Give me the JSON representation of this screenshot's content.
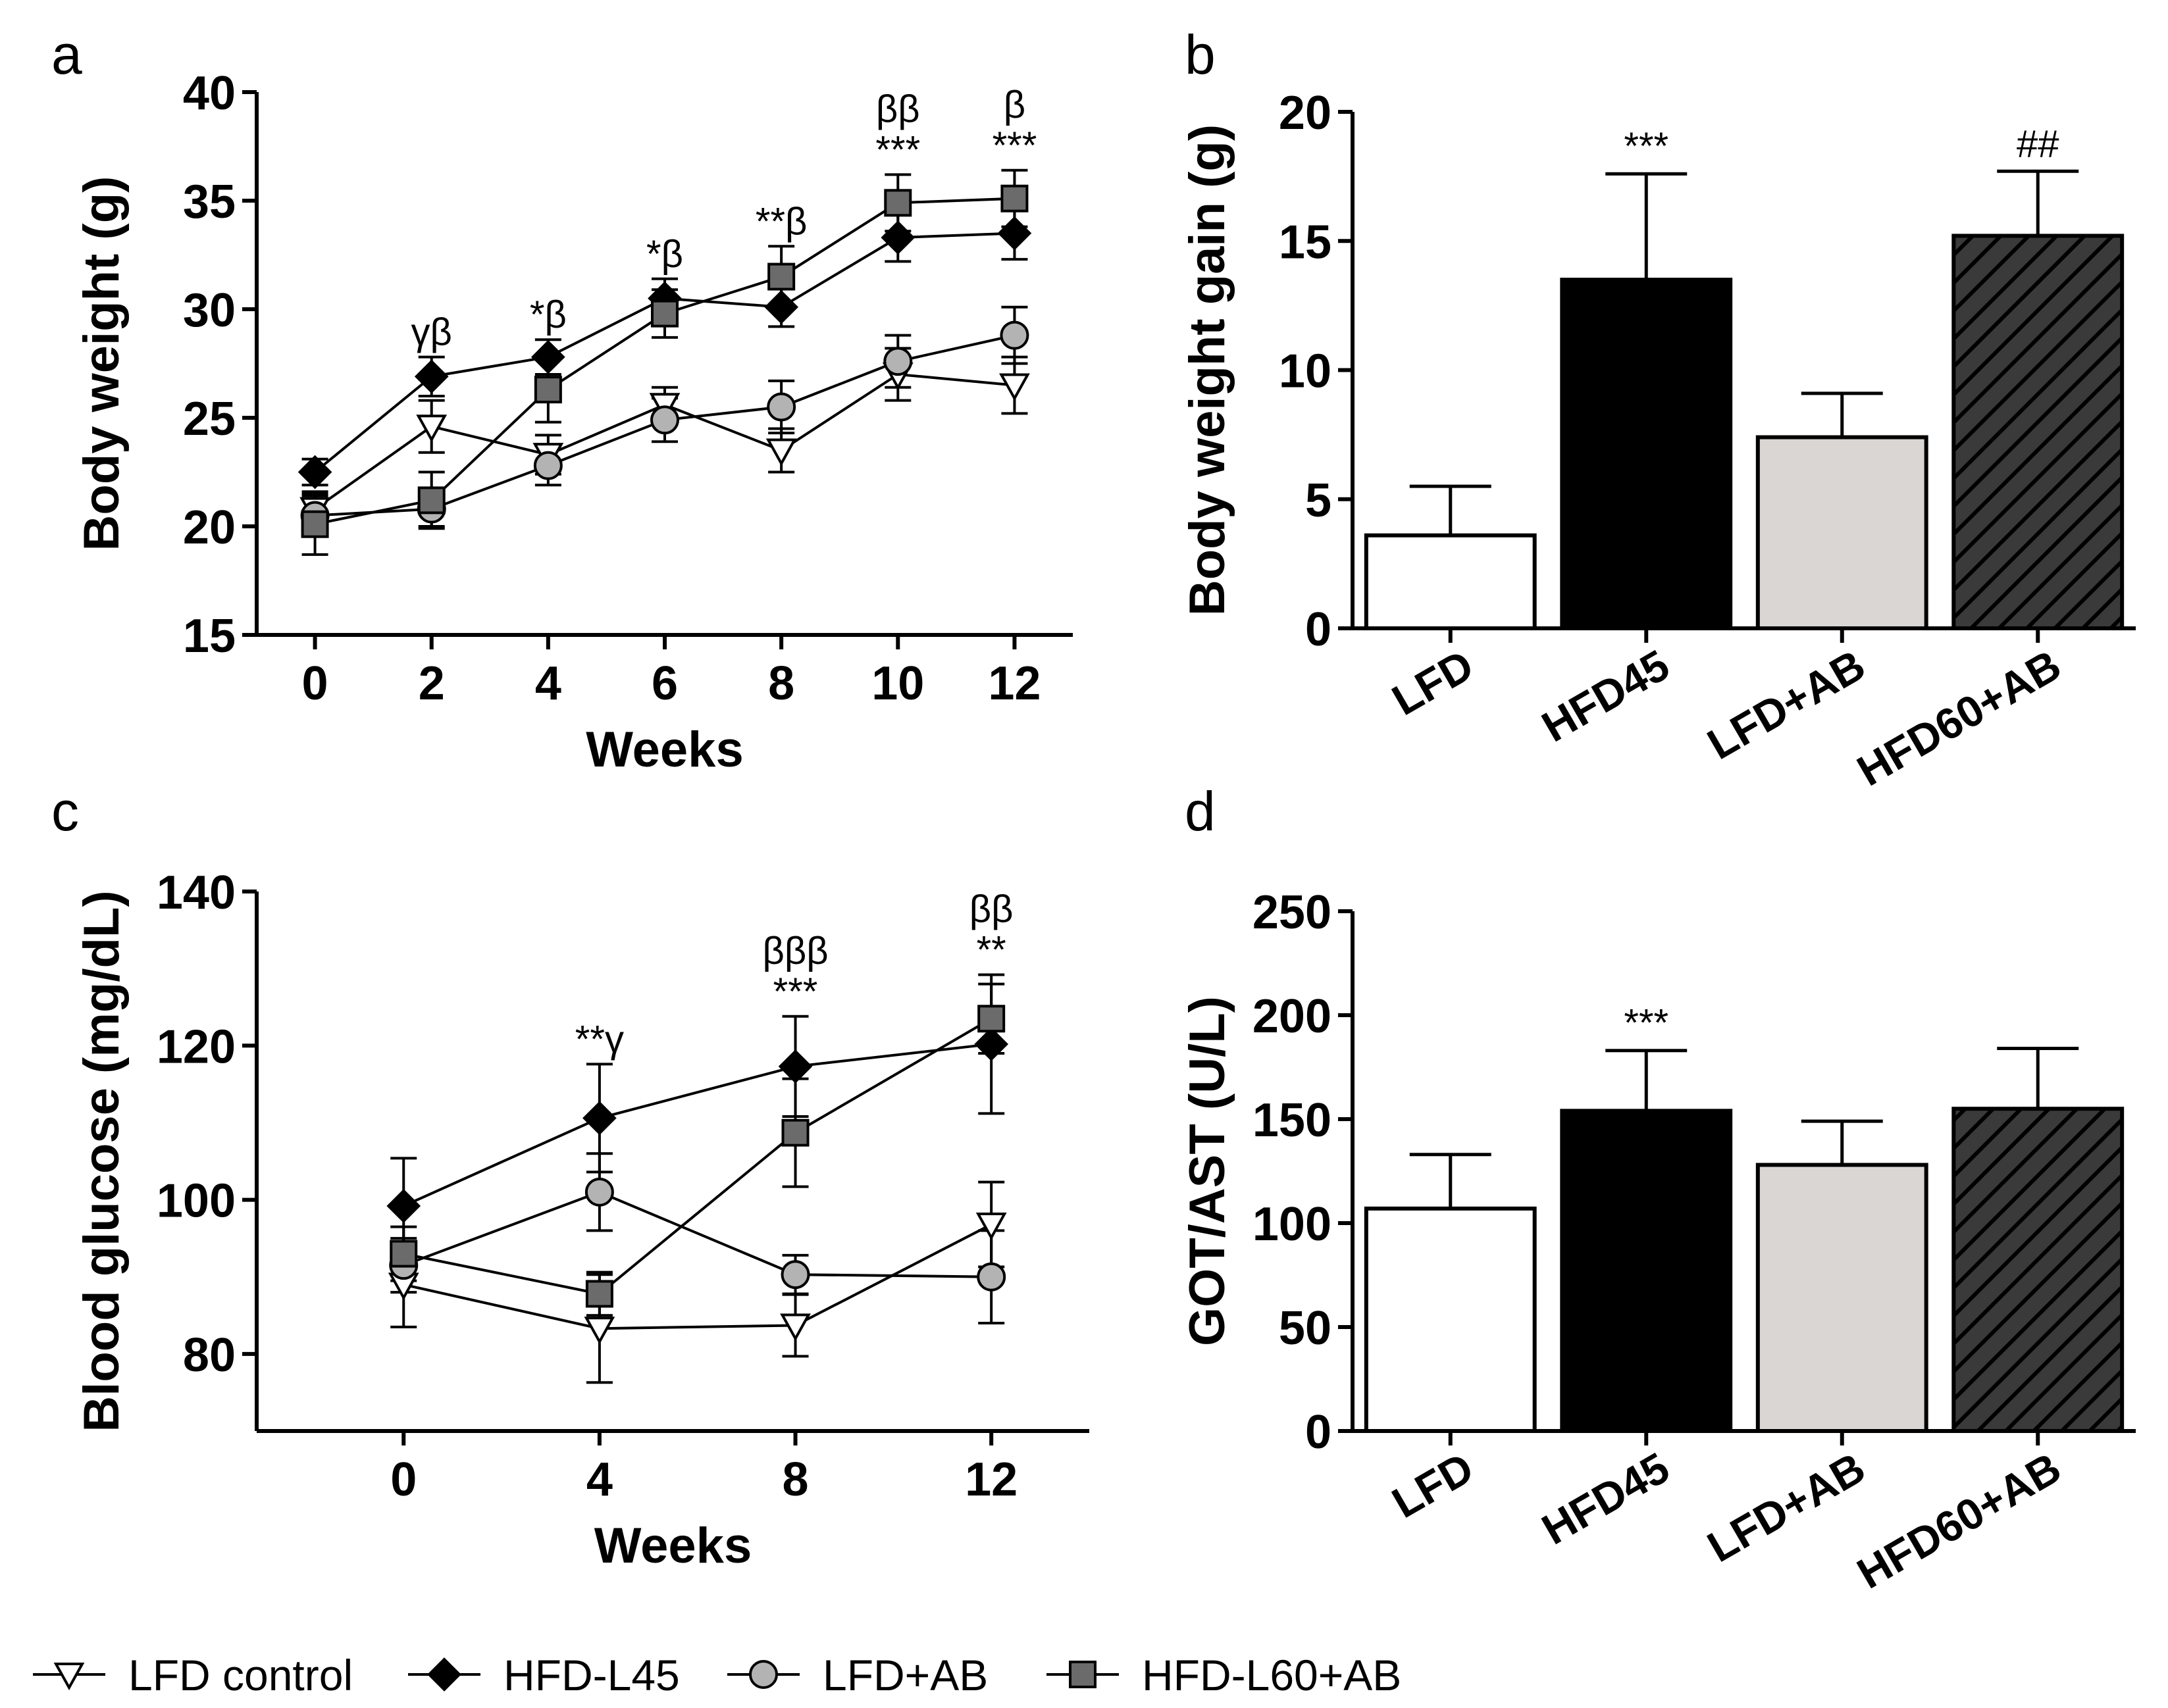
{
  "colors": {
    "LFD": "#ffffff",
    "HFD45": "#000000",
    "LFDAB": "#d9d6d3",
    "HFD60AB": "#3a3a3a",
    "axis": "#000000"
  },
  "legend": [
    {
      "name": "LFD control",
      "marker": "triangle-down-open"
    },
    {
      "name": "HFD-L45",
      "marker": "diamond-filled"
    },
    {
      "name": "LFD+AB",
      "marker": "circle-gray"
    },
    {
      "name": "HFD-L60+AB",
      "marker": "square-gray"
    }
  ],
  "chart_data": [
    {
      "panel": "a",
      "type": "line",
      "xlabel": "Weeks",
      "ylabel": "Body weight (g)",
      "x": [
        0,
        2,
        4,
        6,
        8,
        10,
        12
      ],
      "xticks": [
        "0",
        "2",
        "4",
        "6",
        "8",
        "10",
        "12"
      ],
      "xlim": [
        -1,
        13
      ],
      "ylim": [
        15,
        40
      ],
      "yticks": [
        "15",
        "20",
        "25",
        "30",
        "35",
        "40"
      ],
      "series": [
        {
          "name": "LFD control",
          "values": [
            20.8,
            24.6,
            23.3,
            25.6,
            23.5,
            27.0,
            26.5
          ],
          "err": [
            0.8,
            1.2,
            0.9,
            0.8,
            1.0,
            1.2,
            1.3
          ]
        },
        {
          "name": "HFD-L45",
          "values": [
            22.5,
            26.9,
            27.8,
            30.5,
            30.1,
            33.3,
            33.5
          ],
          "err": [
            0.6,
            0.9,
            0.8,
            0.9,
            0.9,
            1.1,
            1.2
          ]
        },
        {
          "name": "LFD+AB",
          "values": [
            20.5,
            20.8,
            22.8,
            24.9,
            25.5,
            27.6,
            28.8
          ],
          "err": [
            0.9,
            0.8,
            0.9,
            1.0,
            1.2,
            1.2,
            1.3
          ]
        },
        {
          "name": "HFD-L60+AB",
          "values": [
            20.1,
            21.2,
            26.3,
            29.8,
            31.5,
            34.9,
            35.1
          ],
          "err": [
            1.4,
            1.3,
            1.5,
            1.1,
            1.4,
            1.3,
            1.3
          ]
        }
      ],
      "annotations": [
        {
          "x": 2,
          "lines": [
            "γβ"
          ]
        },
        {
          "x": 4,
          "lines": [
            "*β"
          ]
        },
        {
          "x": 6,
          "lines": [
            "*β"
          ]
        },
        {
          "x": 8,
          "lines": [
            "**β"
          ]
        },
        {
          "x": 10,
          "lines": [
            "ββ",
            "***"
          ]
        },
        {
          "x": 12,
          "lines": [
            "β",
            "***"
          ]
        }
      ]
    },
    {
      "panel": "b",
      "type": "bar",
      "ylabel": "Body weight gain (g)",
      "categories": [
        "LFD",
        "HFD45",
        "LFD+AB",
        "HFD60+AB"
      ],
      "values": [
        3.6,
        13.5,
        7.4,
        15.2
      ],
      "err": [
        1.9,
        4.1,
        1.7,
        2.5
      ],
      "ylim": [
        0,
        20
      ],
      "yticks": [
        "0",
        "5",
        "10",
        "15",
        "20"
      ],
      "annotations": [
        "",
        "***",
        "",
        "##"
      ]
    },
    {
      "panel": "c",
      "type": "line",
      "xlabel": "Weeks",
      "ylabel": "Blood glucose (mg/dL)",
      "x": [
        0,
        4,
        8,
        12
      ],
      "xticks": [
        "0",
        "4",
        "8",
        "12"
      ],
      "xlim": [
        -3,
        14
      ],
      "ylim": [
        70,
        140
      ],
      "yticks": [
        "80",
        "100",
        "120",
        "140"
      ],
      "series": [
        {
          "name": "LFD control",
          "values": [
            89.0,
            83.3,
            83.7,
            96.8
          ],
          "err": [
            5.5,
            7.0,
            4.0,
            5.5
          ]
        },
        {
          "name": "HFD-L45",
          "values": [
            99.2,
            110.6,
            117.3,
            120.2
          ],
          "err": [
            6.2,
            7.0,
            6.5,
            9.0
          ]
        },
        {
          "name": "LFD+AB",
          "values": [
            91.5,
            101.0,
            90.3,
            90.0
          ],
          "err": [
            3.5,
            5.0,
            2.5,
            6.0
          ]
        },
        {
          "name": "HFD-L60+AB",
          "values": [
            93.0,
            87.8,
            108.7,
            123.5
          ],
          "err": [
            3.5,
            2.8,
            7.0,
            4.5
          ]
        }
      ],
      "annotations": [
        {
          "x": 4,
          "lines": [
            "**γ"
          ]
        },
        {
          "x": 8,
          "lines": [
            "βββ",
            "***"
          ]
        },
        {
          "x": 12,
          "lines": [
            "ββ",
            "**"
          ]
        }
      ]
    },
    {
      "panel": "d",
      "type": "bar",
      "ylabel": "GOT/AST (U/L)",
      "categories": [
        "LFD",
        "HFD45",
        "LFD+AB",
        "HFD60+AB"
      ],
      "values": [
        107,
        154,
        128,
        155
      ],
      "err": [
        26,
        29,
        21,
        29
      ],
      "ylim": [
        0,
        250
      ],
      "yticks": [
        "0",
        "50",
        "100",
        "150",
        "200",
        "250"
      ],
      "annotations": [
        "",
        "***",
        "",
        ""
      ]
    }
  ]
}
